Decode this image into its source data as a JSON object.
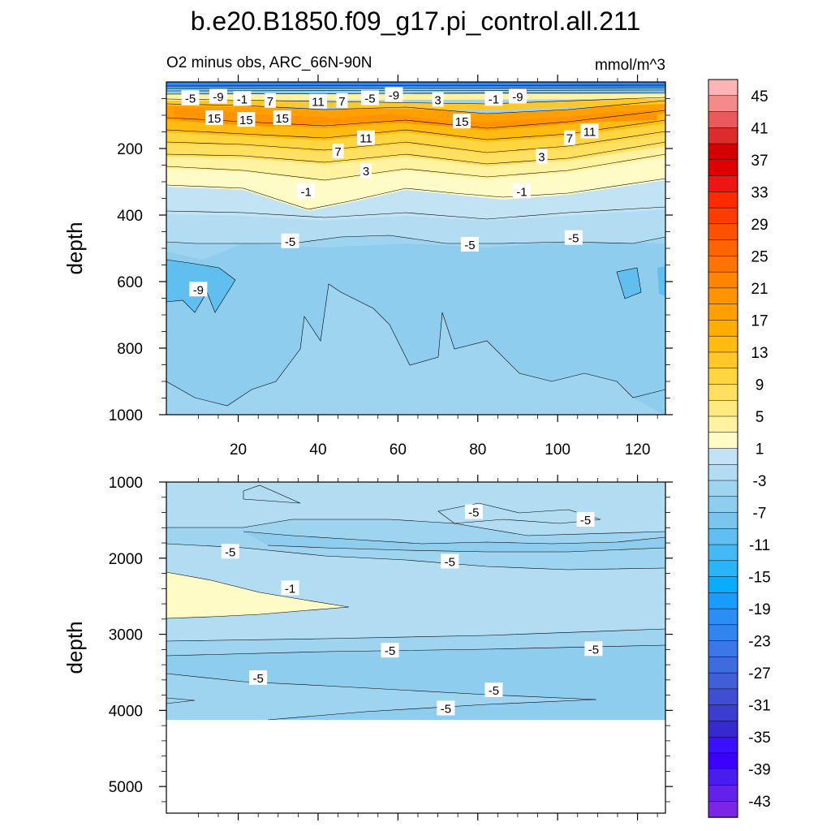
{
  "title": "b.e20.B1850.f09_g17.pi_control.all.211",
  "subtitle_left": "O2 minus obs, ARC_66N-90N",
  "subtitle_right": "mmol/m^3",
  "chart_data": [
    {
      "type": "heatmap",
      "panel": "upper",
      "ylabel": "depth",
      "xlabel": "",
      "xlim": [
        2,
        127
      ],
      "ylim": [
        1000,
        0
      ],
      "x_ticks": [
        "20",
        "40",
        "60",
        "80",
        "100",
        "120"
      ],
      "y_ticks": [
        "200",
        "400",
        "600",
        "800",
        "1000"
      ],
      "contour_labels": [
        {
          "text": "-5",
          "x": 8,
          "y": 50
        },
        {
          "text": "-9",
          "x": 15,
          "y": 45
        },
        {
          "text": "-1",
          "x": 21,
          "y": 52
        },
        {
          "text": "7",
          "x": 28,
          "y": 58
        },
        {
          "text": "11",
          "x": 40,
          "y": 60
        },
        {
          "text": "7",
          "x": 46,
          "y": 58
        },
        {
          "text": "-5",
          "x": 53,
          "y": 50
        },
        {
          "text": "-9",
          "x": 59,
          "y": 40
        },
        {
          "text": "3",
          "x": 70,
          "y": 55
        },
        {
          "text": "-1",
          "x": 84,
          "y": 52
        },
        {
          "text": "-9",
          "x": 90,
          "y": 45
        },
        {
          "text": "15",
          "x": 14,
          "y": 110
        },
        {
          "text": "15",
          "x": 22,
          "y": 115
        },
        {
          "text": "15",
          "x": 31,
          "y": 110
        },
        {
          "text": "15",
          "x": 76,
          "y": 120
        },
        {
          "text": "11",
          "x": 52,
          "y": 170
        },
        {
          "text": "11",
          "x": 108,
          "y": 150
        },
        {
          "text": "7",
          "x": 45,
          "y": 210
        },
        {
          "text": "7",
          "x": 103,
          "y": 170
        },
        {
          "text": "3",
          "x": 52,
          "y": 268
        },
        {
          "text": "3",
          "x": 96,
          "y": 225
        },
        {
          "text": "-1",
          "x": 37,
          "y": 330
        },
        {
          "text": "-1",
          "x": 91,
          "y": 330
        },
        {
          "text": "-5",
          "x": 33,
          "y": 480
        },
        {
          "text": "-5",
          "x": 78,
          "y": 490
        },
        {
          "text": "-5",
          "x": 104,
          "y": 470
        },
        {
          "text": "-9",
          "x": 10,
          "y": 625
        }
      ]
    },
    {
      "type": "heatmap",
      "panel": "lower",
      "ylabel": "depth",
      "xlabel": "",
      "xlim": [
        2,
        127
      ],
      "ylim": [
        5350,
        1000
      ],
      "y_ticks": [
        "1000",
        "2000",
        "3000",
        "4000",
        "5000"
      ],
      "contour_labels": [
        {
          "text": "-5",
          "x": 18,
          "y": 1920
        },
        {
          "text": "-5",
          "x": 73,
          "y": 2050
        },
        {
          "text": "-5",
          "x": 79,
          "y": 1400
        },
        {
          "text": "-5",
          "x": 107,
          "y": 1500
        },
        {
          "text": "-1",
          "x": 33,
          "y": 2400
        },
        {
          "text": "-5",
          "x": 58,
          "y": 3220
        },
        {
          "text": "-5",
          "x": 109,
          "y": 3200
        },
        {
          "text": "-5",
          "x": 25,
          "y": 3580
        },
        {
          "text": "-5",
          "x": 84,
          "y": 3740
        },
        {
          "text": "-5",
          "x": 72,
          "y": 3980
        }
      ]
    }
  ],
  "colorbar": {
    "labels": [
      "45",
      "41",
      "37",
      "33",
      "29",
      "25",
      "21",
      "17",
      "13",
      "9",
      "5",
      "1",
      "-3",
      "-7",
      "-11",
      "-15",
      "-19",
      "-23",
      "-27",
      "-31",
      "-35",
      "-39",
      "-43"
    ],
    "colors": [
      "#fcb5b5",
      "#f58a8a",
      "#ea5a5a",
      "#dd2c2c",
      "#d40000",
      "#e00000",
      "#ee1515",
      "#ff2a00",
      "#ff3c00",
      "#ff5000",
      "#ff6400",
      "#ff7400",
      "#ff8400",
      "#ff9400",
      "#ffa000",
      "#ffae00",
      "#ffbb10",
      "#ffc828",
      "#ffd540",
      "#ffe060",
      "#ffea80",
      "#fff2a0",
      "#fffbc6",
      "#c1e3f3",
      "#b1dcf1",
      "#9fd4f0",
      "#8ecdee",
      "#7ac5ec",
      "#61bff0",
      "#45b9f3",
      "#28b4f8",
      "#0aadfd",
      "#189cff",
      "#2a8ef5",
      "#3284ee",
      "#3a78e8",
      "#3e6cdf",
      "#405ed8",
      "#3e4fd3",
      "#3a3dd0",
      "#3529cf",
      "#3a10ff",
      "#3c00ff",
      "#4a1cf0",
      "#6222ea",
      "#7b26e6"
    ]
  }
}
